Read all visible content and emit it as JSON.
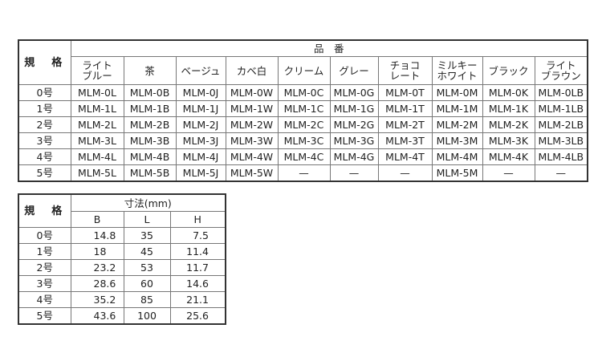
{
  "product_table": {
    "spec_header": "規　格",
    "group_header": "品　番",
    "colors": [
      "ライト\nブルー",
      "茶",
      "ベージュ",
      "カベ白",
      "クリーム",
      "グレー",
      "チョコ\nレート",
      "ミルキー\nホワイト",
      "ブラック",
      "ライト\nブラウン"
    ],
    "rows": [
      {
        "size": "0号",
        "codes": [
          "MLM-0L",
          "MLM-0B",
          "MLM-0J",
          "MLM-0W",
          "MLM-0C",
          "MLM-0G",
          "MLM-0T",
          "MLM-0M",
          "MLM-0K",
          "MLM-0LB"
        ]
      },
      {
        "size": "1号",
        "codes": [
          "MLM-1L",
          "MLM-1B",
          "MLM-1J",
          "MLM-1W",
          "MLM-1C",
          "MLM-1G",
          "MLM-1T",
          "MLM-1M",
          "MLM-1K",
          "MLM-1LB"
        ]
      },
      {
        "size": "2号",
        "codes": [
          "MLM-2L",
          "MLM-2B",
          "MLM-2J",
          "MLM-2W",
          "MLM-2C",
          "MLM-2G",
          "MLM-2T",
          "MLM-2M",
          "MLM-2K",
          "MLM-2LB"
        ]
      },
      {
        "size": "3号",
        "codes": [
          "MLM-3L",
          "MLM-3B",
          "MLM-3J",
          "MLM-3W",
          "MLM-3C",
          "MLM-3G",
          "MLM-3T",
          "MLM-3M",
          "MLM-3K",
          "MLM-3LB"
        ]
      },
      {
        "size": "4号",
        "codes": [
          "MLM-4L",
          "MLM-4B",
          "MLM-4J",
          "MLM-4W",
          "MLM-4C",
          "MLM-4G",
          "MLM-4T",
          "MLM-4M",
          "MLM-4K",
          "MLM-4LB"
        ]
      },
      {
        "size": "5号",
        "codes": [
          "MLM-5L",
          "MLM-5B",
          "MLM-5J",
          "MLM-5W",
          "—",
          "—",
          "—",
          "MLM-5M",
          "—",
          "—"
        ]
      }
    ]
  },
  "dimension_table": {
    "spec_header": "規　格",
    "group_header": "寸法(mm)",
    "columns": [
      "B",
      "L",
      "H"
    ],
    "rows": [
      {
        "size": "0号",
        "values": [
          "14.8",
          "35",
          "7.5"
        ]
      },
      {
        "size": "1号",
        "values": [
          "18",
          "45",
          "11.4"
        ]
      },
      {
        "size": "2号",
        "values": [
          "23.2",
          "53",
          "11.7"
        ]
      },
      {
        "size": "3号",
        "values": [
          "28.6",
          "60",
          "14.6"
        ]
      },
      {
        "size": "4号",
        "values": [
          "35.2",
          "85",
          "21.1"
        ]
      },
      {
        "size": "5号",
        "values": [
          "43.6",
          "100",
          "25.6"
        ]
      }
    ]
  }
}
